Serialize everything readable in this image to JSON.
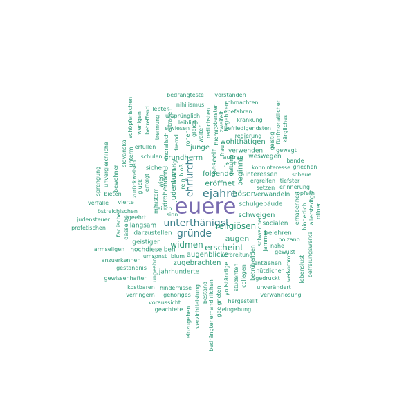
{
  "colors": {
    "background": "#ffffff",
    "highlight": "#7a6db0",
    "strong": "#3a7f8a",
    "normal": "#2e9a78"
  },
  "words": [
    "euere",
    "ejahre",
    "unterthänigst",
    "gründe",
    "ehrfurcht",
    "religiösen",
    "widmen",
    "erscheint",
    "bösen",
    "eröffnet",
    "beginnt",
    "augen",
    "schweigen",
    "folgende",
    "grundherrn",
    "judentum",
    "zugebrachten",
    "augenblicke",
    "beseelt",
    "drohenden",
    "bedrängteste",
    "vorständen",
    "nihilismus",
    "schmachten",
    "lebten",
    "begehrten",
    "oberster",
    "ursprünglich",
    "redlichsten",
    "ebefahren",
    "leiblich",
    "kränkung",
    "erwiesen",
    "befriedigendsten",
    "regierung",
    "rohen",
    "wohlthätigen",
    "geistig",
    "gewagt",
    "fünfmonatlichen",
    "kärgliches",
    "junge",
    "verwenden",
    "weswegen",
    "bande",
    "schulen",
    "sichern",
    "kohninteresse",
    "griechen",
    "interessen",
    "scheue",
    "setzen",
    "tiefster",
    "ergreifen",
    "erinnerung",
    "verwandeln",
    "opfern",
    "schulgebäude",
    "erhabenheit",
    "hinderlich",
    "allerstadtgst",
    "offner",
    "socialen",
    "belehren",
    "bolzano",
    "nahe",
    "gewußt",
    "nützlicher",
    "lebenslust",
    "befreiungswerke",
    "verwahrlosung",
    "unverändert",
    "gedruckt",
    "hergestellt",
    "eingebung",
    "geeigneten",
    "yollständige",
    "bestand",
    "entziehen",
    "jahrhunderte",
    "hindernisse",
    "gehöriges",
    "geachtete",
    "voraussicht",
    "verringern",
    "kostbaren",
    "gewissenhafter",
    "geständnis",
    "anzuerkennen",
    "armseligen",
    "umsonst",
    "hochdieselben",
    "blum",
    "geistigen",
    "darzustellen",
    "langsam",
    "geehrt",
    "östreichischen",
    "judensteuer",
    "profetischen",
    "verfalle",
    "bieten",
    "vierte",
    "sprengung",
    "unvergleichliche",
    "slovanska",
    "schöpferischen",
    "wenigen",
    "betreffend",
    "erfüllen",
    "unterm",
    "bewohner",
    "glück",
    "erfolgt",
    "zurückweisen",
    "ministerr",
    "gleich",
    "walter",
    "hiemit",
    "zweifelt",
    "frau",
    "wien",
    "sinn",
    "faclische",
    "dasselbe",
    "jammer",
    "verkommt",
    "collegen",
    "studenten",
    "fremd",
    "moralisch",
    "bloß",
    "mächtig",
    "rein",
    "bedrängtenemandirlichen",
    "verzichtleistung",
    "einzugehen",
    "ungeahnt",
    "geltung",
    "ertragen",
    "trennung",
    "schwachen",
    "betrübenden",
    "auftrag",
    "freilich",
    "verbreitung",
    "jetzt"
  ]
}
